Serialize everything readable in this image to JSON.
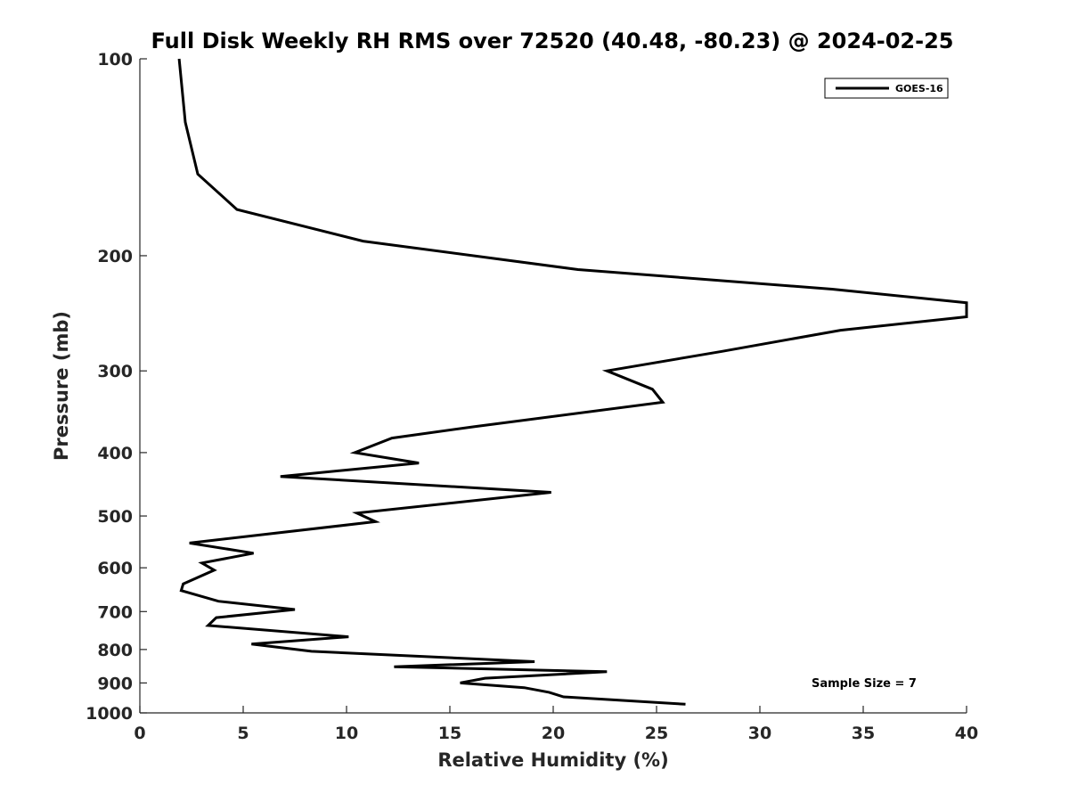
{
  "chart_data": {
    "type": "line",
    "title": "Full Disk Weekly RH RMS over 72520 (40.48, -80.23) @ 2024-02-25",
    "xlabel": "Relative Humidity (%)",
    "ylabel": "Pressure (mb)",
    "xlim": [
      0,
      40
    ],
    "ylim": [
      100,
      1000
    ],
    "y_scale": "log",
    "y_reversed": true,
    "grid": false,
    "legend_placement": "top-right",
    "xticks": [
      "0",
      "5",
      "10",
      "15",
      "20",
      "25",
      "30",
      "35",
      "40"
    ],
    "yticks": [
      "100",
      "200",
      "300",
      "400",
      "500",
      "600",
      "700",
      "800",
      "900",
      "1000"
    ],
    "annotation": "Sample Size = 7",
    "series": [
      {
        "name": "GOES-16",
        "color": "#000000",
        "x": [
          1.9,
          2.2,
          2.8,
          4.7,
          10.8,
          21.2,
          33.5,
          40.0,
          40.0,
          33.9,
          28.2,
          22.6,
          24.8,
          25.3,
          16.2,
          12.2,
          10.4,
          13.5,
          6.8,
          19.9,
          10.5,
          11.4,
          2.4,
          5.5,
          3.0,
          3.6,
          2.1,
          2.0,
          3.8,
          7.5,
          3.7,
          3.3,
          10.1,
          5.4,
          8.3,
          19.1,
          12.3,
          22.6,
          16.7,
          15.5,
          18.6,
          19.8,
          20.5,
          26.4
        ],
        "y": [
          100,
          125,
          150,
          170,
          190,
          210,
          225,
          236,
          248,
          260,
          280,
          300,
          320,
          335,
          365,
          380,
          400,
          415,
          435,
          460,
          495,
          510,
          550,
          570,
          590,
          605,
          635,
          650,
          675,
          695,
          715,
          735,
          765,
          785,
          805,
          835,
          850,
          865,
          885,
          900,
          915,
          930,
          945,
          970
        ]
      }
    ]
  }
}
